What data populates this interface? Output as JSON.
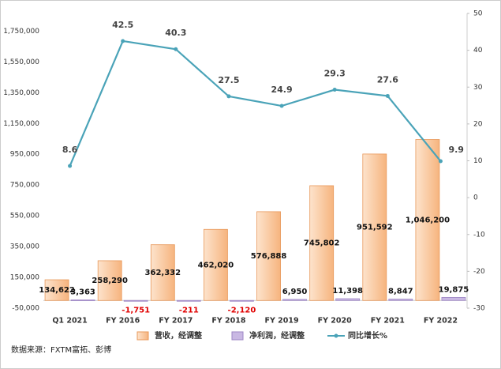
{
  "chart_data": {
    "type": "bar",
    "categories": [
      "Q1 2021",
      "FY 2016",
      "FY 2017",
      "FY 2018",
      "FY 2019",
      "FY 2020",
      "FY 2021",
      "FY 2022"
    ],
    "series": [
      {
        "name": "营收，经调整",
        "color": "#f8c08f",
        "values": [
          134622,
          258290,
          362332,
          462020,
          576888,
          745802,
          951592,
          1046200
        ],
        "value_labels": [
          "134,622",
          "258,290",
          "362,332",
          "462,020",
          "576,888",
          "745,802",
          "951,592",
          "1,046,200"
        ]
      },
      {
        "name": "净利润，经调整",
        "color": "#c9b8e3",
        "values": [
          3363,
          -1751,
          -211,
          -2120,
          6950,
          11398,
          8847,
          19875
        ],
        "value_labels": [
          "3,363",
          "-1,751",
          "-211",
          "-2,120",
          "6,950",
          "11,398",
          "8,847",
          "19,875"
        ]
      },
      {
        "name": "同比增长%",
        "type": "line",
        "axis": "y2",
        "color": "#4aa3b8",
        "values": [
          8.6,
          42.5,
          40.3,
          27.5,
          24.9,
          29.3,
          27.6,
          9.9
        ]
      }
    ],
    "ylim": [
      -50000,
      1865000
    ],
    "yticks": [
      {
        "value": -50000,
        "label": "-50,000"
      },
      {
        "value": 150000,
        "label": "150,000"
      },
      {
        "value": 350000,
        "label": "350,000"
      },
      {
        "value": 550000,
        "label": "550,000"
      },
      {
        "value": 750000,
        "label": "750,000"
      },
      {
        "value": 950000,
        "label": "950,000"
      },
      {
        "value": 1150000,
        "label": "1,150,000"
      },
      {
        "value": 1350000,
        "label": "1,350,000"
      },
      {
        "value": 1550000,
        "label": "1,550,000"
      },
      {
        "value": 1750000,
        "label": "1,750,000"
      }
    ],
    "y2lim": [
      -30,
      50
    ],
    "y2ticks": [
      -30,
      -20,
      -10,
      0,
      10,
      20,
      30,
      40,
      50
    ],
    "grid": false,
    "legend": "bottom",
    "source": "数据来源：FXTM富拓、彭博"
  }
}
